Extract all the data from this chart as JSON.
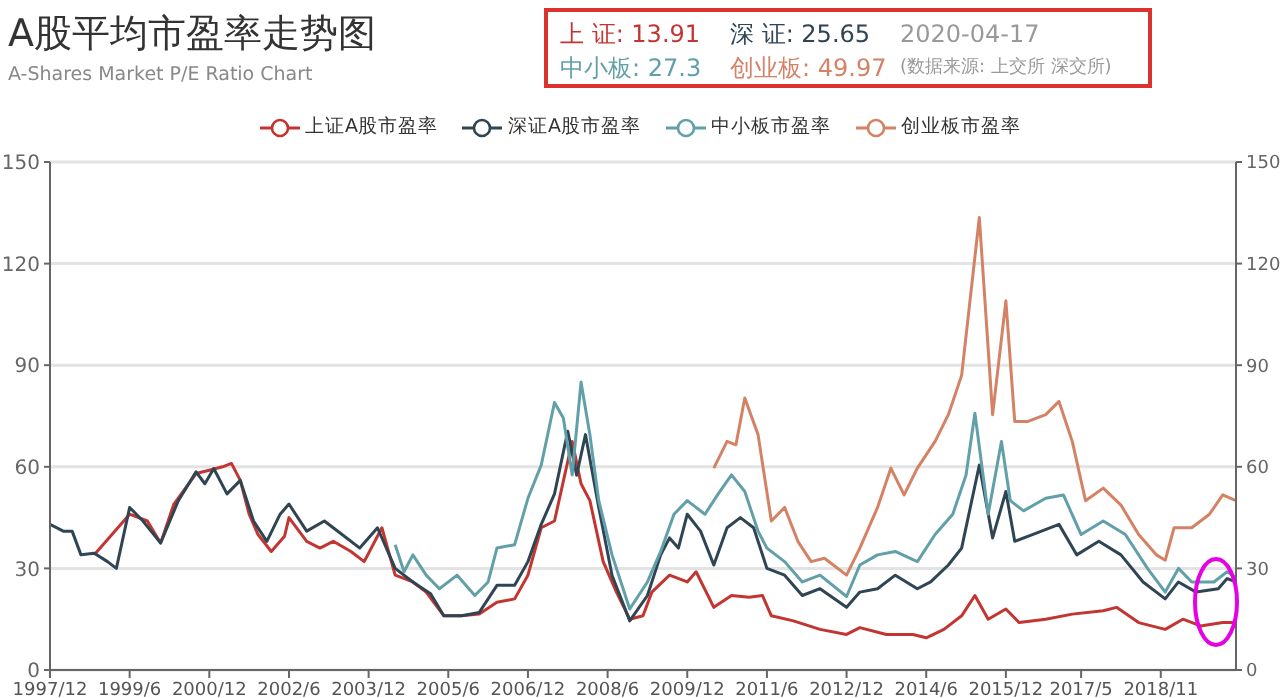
{
  "chart_data": {
    "type": "line",
    "title": "A股平均市盈率走势图",
    "subtitle": "A-Shares Market P/E Ratio Chart",
    "annotations": [
      "上 证: 13.91",
      "深 证: 25.65",
      "2020-04-17",
      "中小板: 27.3",
      "创业板: 49.97",
      "(数据来源: 上交所 深交所)"
    ],
    "xlim": [
      "1997-12",
      "2020-04"
    ],
    "xticks": [
      {
        "value": "1997-12",
        "label": "1997/12"
      },
      {
        "value": "1999-06",
        "label": "1999/6"
      },
      {
        "value": "2000-12",
        "label": "2000/12"
      },
      {
        "value": "2002-06",
        "label": "2002/6"
      },
      {
        "value": "2003-12",
        "label": "2003/12"
      },
      {
        "value": "2005-06",
        "label": "2005/6"
      },
      {
        "value": "2006-12",
        "label": "2006/12"
      },
      {
        "value": "2008-06",
        "label": "2008/6"
      },
      {
        "value": "2009-12",
        "label": "2009/12"
      },
      {
        "value": "2011-06",
        "label": "2011/6"
      },
      {
        "value": "2012-12",
        "label": "2012/12"
      },
      {
        "value": "2014-06",
        "label": "2014/6"
      },
      {
        "value": "2015-12",
        "label": "2015/12"
      },
      {
        "value": "2017-05",
        "label": "2017/5"
      },
      {
        "value": "2018-11",
        "label": "2018/11"
      }
    ],
    "ylim": [
      0,
      150
    ],
    "yticks": [
      0,
      30,
      60,
      90,
      120,
      150
    ],
    "y2lim": [
      0,
      150
    ],
    "y2ticks": [
      0,
      30,
      60,
      90,
      120,
      150
    ],
    "grid": "y",
    "legend": "top",
    "marker": "none",
    "line_style": "solid",
    "series": [
      {
        "name": "上证A股市盈率",
        "color": "#c23531",
        "x": [
          "1998-10",
          "1999-06",
          "1999-10",
          "2000-01",
          "2000-04",
          "2000-09",
          "2000-12",
          "2001-03",
          "2001-05",
          "2001-07",
          "2001-09",
          "2001-11",
          "2002-02",
          "2002-05",
          "2002-06",
          "2002-10",
          "2003-01",
          "2003-04",
          "2003-08",
          "2003-11",
          "2004-03",
          "2004-06",
          "2004-10",
          "2005-01",
          "2005-05",
          "2005-09",
          "2006-01",
          "2006-05",
          "2006-09",
          "2006-12",
          "2007-03",
          "2007-06",
          "2007-10",
          "2007-12",
          "2008-02",
          "2008-05",
          "2008-08",
          "2008-11",
          "2009-02",
          "2009-04",
          "2009-08",
          "2009-12",
          "2010-02",
          "2010-06",
          "2010-10",
          "2011-02",
          "2011-05",
          "2011-07",
          "2011-12",
          "2012-06",
          "2012-12",
          "2013-03",
          "2013-09",
          "2014-03",
          "2014-06",
          "2014-10",
          "2015-02",
          "2015-05",
          "2015-08",
          "2015-12",
          "2016-03",
          "2016-09",
          "2017-03",
          "2017-10",
          "2018-01",
          "2018-06",
          "2018-12",
          "2019-04",
          "2019-08",
          "2020-01",
          "2020-04"
        ],
        "values": [
          34,
          46,
          44,
          37.5,
          49,
          58,
          59,
          60,
          61,
          56,
          46,
          40,
          35,
          39.5,
          45,
          38,
          36,
          38,
          35,
          32,
          42,
          28,
          26,
          23,
          16,
          16,
          16.5,
          20,
          21,
          28,
          42,
          44,
          67.5,
          55,
          50,
          32,
          23,
          15,
          16,
          23,
          28,
          26,
          29,
          18.5,
          22,
          21.5,
          22,
          16,
          14.5,
          12,
          10.5,
          12.5,
          10.5,
          10.5,
          9.5,
          12,
          16,
          22,
          15,
          18,
          14,
          15,
          16.5,
          17.5,
          18.5,
          14,
          12,
          15,
          13,
          14,
          14
        ]
      },
      {
        "name": "深证A股市盈率",
        "color": "#2f4554",
        "x": [
          "1997-12",
          "1998-03",
          "1998-05",
          "1998-07",
          "1998-10",
          "1999-01",
          "1999-03",
          "1999-06",
          "1999-09",
          "2000-01",
          "2000-05",
          "2000-09",
          "2000-11",
          "2001-01",
          "2001-04",
          "2001-07",
          "2001-10",
          "2002-01",
          "2002-04",
          "2002-06",
          "2002-10",
          "2003-02",
          "2003-06",
          "2003-10",
          "2004-02",
          "2004-06",
          "2004-10",
          "2005-02",
          "2005-05",
          "2005-09",
          "2006-01",
          "2006-05",
          "2006-09",
          "2006-12",
          "2007-03",
          "2007-06",
          "2007-09",
          "2007-11",
          "2008-01",
          "2008-04",
          "2008-07",
          "2008-11",
          "2009-03",
          "2009-06",
          "2009-08",
          "2009-10",
          "2009-12",
          "2010-03",
          "2010-06",
          "2010-09",
          "2010-12",
          "2011-03",
          "2011-06",
          "2011-10",
          "2012-02",
          "2012-06",
          "2012-12",
          "2013-03",
          "2013-07",
          "2013-11",
          "2014-04",
          "2014-07",
          "2014-11",
          "2015-02",
          "2015-06",
          "2015-09",
          "2015-12",
          "2016-02",
          "2016-06",
          "2016-12",
          "2017-04",
          "2017-09",
          "2018-02",
          "2018-07",
          "2018-12",
          "2019-03",
          "2019-07",
          "2019-12",
          "2020-02",
          "2020-04"
        ],
        "values": [
          43,
          41,
          41,
          34,
          34.5,
          32,
          30,
          48,
          44,
          37.5,
          50,
          58.5,
          55,
          59.5,
          52,
          56,
          44,
          38,
          46,
          49,
          41,
          44,
          40,
          36,
          42,
          30,
          26,
          22.5,
          16,
          16,
          17,
          25,
          25,
          32,
          43,
          52,
          70.5,
          57.5,
          69.5,
          48,
          28,
          14.5,
          22,
          34,
          39,
          36,
          46,
          41,
          31,
          42,
          45,
          42,
          30,
          28,
          22,
          24,
          18.5,
          23,
          24,
          28,
          24,
          26,
          31,
          36,
          60.5,
          39,
          52.7,
          38,
          40,
          43,
          34,
          38,
          34,
          26,
          21,
          26,
          23,
          24,
          27,
          26
        ]
      },
      {
        "name": "中小板市盈率",
        "color": "#61a0a8",
        "x": [
          "2004-06",
          "2004-08",
          "2004-10",
          "2005-01",
          "2005-04",
          "2005-08",
          "2005-12",
          "2006-03",
          "2006-05",
          "2006-09",
          "2006-12",
          "2007-03",
          "2007-06",
          "2007-08",
          "2007-10",
          "2007-12",
          "2008-02",
          "2008-04",
          "2008-07",
          "2008-11",
          "2009-03",
          "2009-06",
          "2009-09",
          "2009-12",
          "2010-04",
          "2010-07",
          "2010-10",
          "2011-01",
          "2011-04",
          "2011-06",
          "2011-10",
          "2012-02",
          "2012-06",
          "2012-12",
          "2013-03",
          "2013-07",
          "2013-11",
          "2014-04",
          "2014-08",
          "2014-12",
          "2015-03",
          "2015-05",
          "2015-08",
          "2015-11",
          "2016-01",
          "2016-04",
          "2016-09",
          "2017-01",
          "2017-05",
          "2017-10",
          "2018-03",
          "2018-08",
          "2018-12",
          "2019-03",
          "2019-06",
          "2019-11",
          "2020-02",
          "2020-04"
        ],
        "values": [
          37,
          29,
          34,
          28,
          24,
          28,
          22,
          26,
          36,
          37,
          50.7,
          60.5,
          79,
          74.4,
          57.6,
          85,
          69.5,
          50,
          34,
          18,
          26,
          35,
          46,
          50,
          46,
          52,
          57.6,
          52.7,
          41,
          36,
          32,
          26,
          28,
          21.7,
          31,
          34,
          35,
          32,
          40,
          46,
          57.6,
          75.8,
          46,
          67.5,
          50,
          47,
          50.7,
          51.7,
          40,
          44,
          40,
          30,
          23,
          30,
          26,
          26,
          29,
          27.3
        ]
      },
      {
        "name": "创业板市盈率",
        "color": "#d48265",
        "x": [
          "2010-06",
          "2010-09",
          "2010-11",
          "2011-01",
          "2011-04",
          "2011-07",
          "2011-10",
          "2012-01",
          "2012-04",
          "2012-07",
          "2012-12",
          "2013-03",
          "2013-07",
          "2013-10",
          "2014-01",
          "2014-04",
          "2014-08",
          "2014-11",
          "2015-02",
          "2015-06",
          "2015-09",
          "2015-12",
          "2016-02",
          "2016-05",
          "2016-09",
          "2016-12",
          "2017-03",
          "2017-06",
          "2017-10",
          "2018-02",
          "2018-06",
          "2018-10",
          "2018-12",
          "2019-02",
          "2019-06",
          "2019-10",
          "2020-01",
          "2020-04"
        ],
        "values": [
          59.6,
          67.5,
          66.5,
          80.3,
          69.5,
          44,
          48,
          38,
          32,
          33,
          28,
          36,
          48,
          59.6,
          51.7,
          59.6,
          67.5,
          75.4,
          87,
          133.6,
          75.4,
          109,
          73.4,
          73.4,
          75.4,
          79.3,
          67.5,
          50,
          53.7,
          48.7,
          40,
          34,
          32.4,
          42,
          42,
          46,
          51.7,
          50
        ]
      }
    ]
  }
}
